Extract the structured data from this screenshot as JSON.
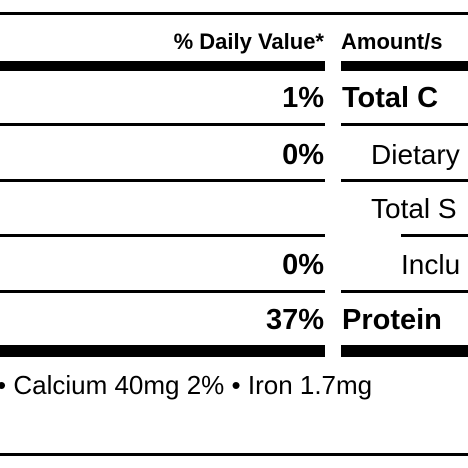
{
  "header": {
    "daily_value_label": "% Daily Value*",
    "amount_label": "Amount/s"
  },
  "rows": [
    {
      "dv": "1%",
      "nutrient": "Total C",
      "bold": true
    },
    {
      "dv": "0%",
      "nutrient": "Dietary",
      "bold": false
    },
    {
      "dv": "",
      "nutrient": "Total S",
      "bold": false
    },
    {
      "dv": "0%",
      "nutrient": "Inclu",
      "bold": false
    },
    {
      "dv": "37%",
      "nutrient": "Protein",
      "bold": true
    }
  ],
  "footer": {
    "minerals": "• Calcium 40mg 2% • Iron 1.7mg"
  }
}
